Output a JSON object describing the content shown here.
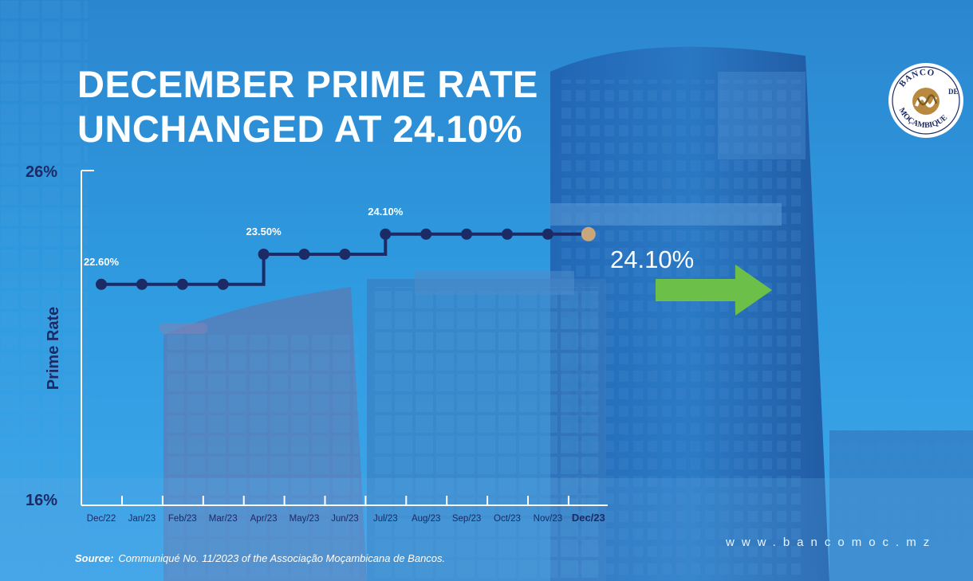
{
  "headline": {
    "line1": "DECEMBER PRIME RATE",
    "line2": "UNCHANGED AT 24.10%"
  },
  "logo": {
    "text_top": "BANCO",
    "text_mid": "DE",
    "text_bottom": "MOÇAMBIQUE",
    "icon": "bank-emblem-icon"
  },
  "chart_data": {
    "type": "line",
    "ylabel": "Prime Rate",
    "ylim": [
      16,
      26
    ],
    "y_ticks": [
      "26%",
      "16%"
    ],
    "categories": [
      "Dec/22",
      "Jan/23",
      "Feb/23",
      "Mar/23",
      "Apr/23",
      "May/23",
      "Jun/23",
      "Jul/23",
      "Aug/23",
      "Sep/23",
      "Oct/23",
      "Nov/23",
      "Dec/23"
    ],
    "values": [
      22.6,
      22.6,
      22.6,
      22.6,
      23.5,
      23.5,
      23.5,
      24.1,
      24.1,
      24.1,
      24.1,
      24.1,
      24.1
    ],
    "data_labels": [
      {
        "index": 0,
        "text": "22.60%"
      },
      {
        "index": 4,
        "text": "23.50%"
      },
      {
        "index": 7,
        "text": "24.10%"
      }
    ],
    "highlight": {
      "index": 12,
      "text": "24.10%"
    },
    "step": true,
    "colors": {
      "line": "#1c2a66",
      "highlight_point": "#c9a77a",
      "axis": "#ffffff",
      "arrow": "#6cc04a"
    }
  },
  "source": {
    "label": "Source:",
    "text": "Communiqué No. 11/2023 of the Associação Moçambicana de Bancos."
  },
  "website": "www.bancomoc.mz"
}
